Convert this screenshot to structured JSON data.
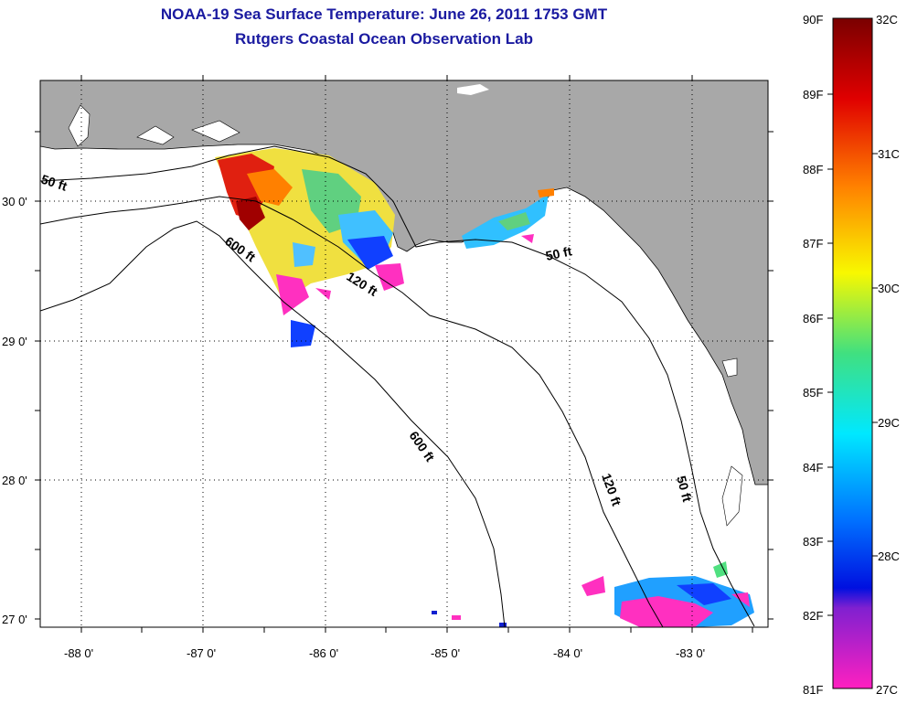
{
  "header": {
    "title": "NOAA-19 Sea Surface Temperature:  June 26, 2011 1753 GMT",
    "subtitle": "Rutgers Coastal Ocean Observation Lab"
  },
  "map": {
    "lat_labels": [
      "30 0'",
      "29 0'",
      "28 0'",
      "27 0'"
    ],
    "lon_labels": [
      "-88 0'",
      "-87 0'",
      "-86 0'",
      "-85 0'",
      "-84 0'",
      "-83 0'"
    ],
    "contour_labels": [
      "50 ft",
      "600 ft",
      "120 ft",
      "50 ft",
      "600 ft",
      "120 ft",
      "50 ft"
    ],
    "land_color": "#a8a8a8",
    "ocean_color": "#ffffff",
    "grid": "dotted"
  },
  "colorbar": {
    "f_labels": [
      "90F",
      "89F",
      "88F",
      "87F",
      "86F",
      "85F",
      "84F",
      "83F",
      "82F",
      "81F"
    ],
    "c_labels": [
      "32C",
      "31C",
      "30C",
      "29C",
      "28C",
      "27C"
    ]
  }
}
